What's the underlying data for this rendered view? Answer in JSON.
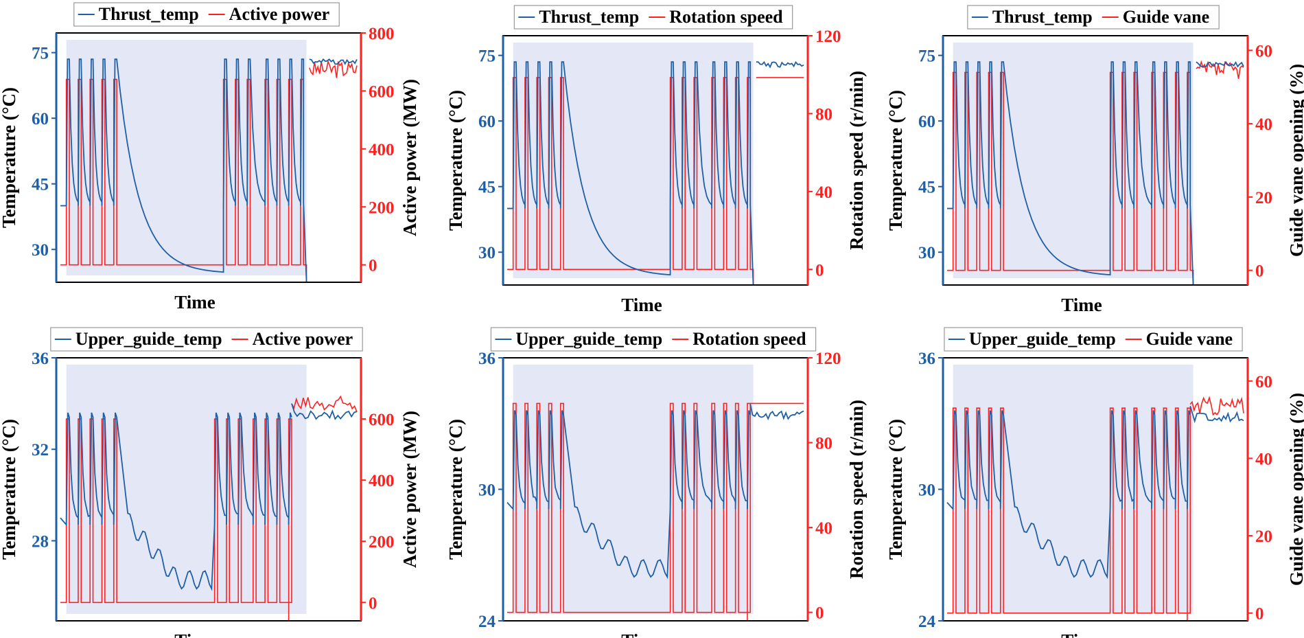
{
  "colors": {
    "temp": "#1f5fa6",
    "op": "#ff2020",
    "shade": "#e4e8f6",
    "frame": "#000000"
  },
  "chart_data": [
    {
      "type": "line",
      "xlabel": "Time",
      "x_ticks_shown": false,
      "grid": false,
      "legend": [
        "Thrust_temp",
        "Active power"
      ],
      "legend_placement": "top-center",
      "left_axis": {
        "label": "Temperature (°C)",
        "ylim": [
          22.5,
          79.5
        ],
        "ticks": [
          30,
          45,
          60,
          75
        ]
      },
      "right_axis": {
        "label": "Active power (MW)",
        "ylim": [
          -60,
          800
        ],
        "ticks": [
          0,
          200,
          400,
          600,
          800
        ]
      },
      "shaded_window": {
        "x_start": 0.02,
        "x_end": 0.83
      },
      "series": [
        {
          "name": "Thrust_temp",
          "axis": "left",
          "baseline": 40,
          "peak": 73.5,
          "high_segments": [
            [
              0.02,
              0.83
            ]
          ],
          "pulses": [
            [
              0.02,
              0.03
            ],
            [
              0.06,
              0.07
            ],
            [
              0.1,
              0.11
            ],
            [
              0.14,
              0.15
            ],
            [
              0.18,
              0.19
            ],
            [
              0.55,
              0.56
            ],
            [
              0.59,
              0.6
            ],
            [
              0.63,
              0.64
            ],
            [
              0.69,
              0.7
            ],
            [
              0.73,
              0.74
            ],
            [
              0.77,
              0.78
            ],
            [
              0.81,
              0.82
            ]
          ],
          "decay_low": 24.5,
          "steady_segment": {
            "x": [
              0.84,
              1.0
            ],
            "value": 73.5
          }
        },
        {
          "name": "Active power",
          "axis": "right",
          "low": 0,
          "high": 640,
          "pulses": [
            [
              0.02,
              0.03
            ],
            [
              0.06,
              0.07
            ],
            [
              0.1,
              0.11
            ],
            [
              0.14,
              0.15
            ],
            [
              0.18,
              0.19
            ],
            [
              0.55,
              0.56
            ],
            [
              0.59,
              0.6
            ],
            [
              0.63,
              0.64
            ],
            [
              0.69,
              0.7
            ],
            [
              0.73,
              0.74
            ],
            [
              0.77,
              0.78
            ],
            [
              0.81,
              0.82
            ]
          ],
          "steady_segment": {
            "x": [
              0.84,
              1.0
            ],
            "value": 680
          }
        }
      ]
    },
    {
      "type": "line",
      "xlabel": "Time",
      "x_ticks_shown": false,
      "grid": false,
      "legend": [
        "Thrust_temp",
        "Rotation speed"
      ],
      "legend_placement": "top-center",
      "left_axis": {
        "label": "Temperature (°C)",
        "ylim": [
          22.5,
          79.5
        ],
        "ticks": [
          30,
          45,
          60,
          75
        ]
      },
      "right_axis": {
        "label": "Rotation speed (r/min)",
        "ylim": [
          -8,
          120
        ],
        "ticks": [
          0,
          40,
          80,
          120
        ]
      },
      "shaded_window": {
        "x_start": 0.02,
        "x_end": 0.83
      },
      "series": [
        {
          "name": "Thrust_temp",
          "axis": "left",
          "baseline": 40,
          "peak": 73.5,
          "pulses": [
            [
              0.02,
              0.03
            ],
            [
              0.06,
              0.07
            ],
            [
              0.1,
              0.11
            ],
            [
              0.14,
              0.15
            ],
            [
              0.18,
              0.19
            ],
            [
              0.55,
              0.56
            ],
            [
              0.59,
              0.6
            ],
            [
              0.63,
              0.64
            ],
            [
              0.69,
              0.7
            ],
            [
              0.73,
              0.74
            ],
            [
              0.77,
              0.78
            ],
            [
              0.81,
              0.82
            ]
          ],
          "decay_low": 24.5,
          "steady_segment": {
            "x": [
              0.84,
              1.0
            ],
            "value": 73.5
          }
        },
        {
          "name": "Rotation speed",
          "axis": "right",
          "low": 0,
          "high": 98.5,
          "pulses": [
            [
              0.02,
              0.03
            ],
            [
              0.06,
              0.07
            ],
            [
              0.1,
              0.11
            ],
            [
              0.14,
              0.15
            ],
            [
              0.18,
              0.19
            ],
            [
              0.55,
              0.56
            ],
            [
              0.59,
              0.6
            ],
            [
              0.63,
              0.64
            ],
            [
              0.69,
              0.7
            ],
            [
              0.73,
              0.74
            ],
            [
              0.77,
              0.78
            ],
            [
              0.81,
              0.82
            ]
          ],
          "steady_segment": {
            "x": [
              0.84,
              1.0
            ],
            "value": 98.5
          }
        }
      ]
    },
    {
      "type": "line",
      "xlabel": "Time",
      "x_ticks_shown": false,
      "grid": false,
      "legend": [
        "Thrust_temp",
        "Guide vane"
      ],
      "legend_placement": "top-center",
      "left_axis": {
        "label": "Temperature (°C)",
        "ylim": [
          22.5,
          79.5
        ],
        "ticks": [
          30,
          45,
          60,
          75
        ]
      },
      "right_axis": {
        "label": "Guide vane opening (%)",
        "ylim": [
          -4,
          64
        ],
        "ticks": [
          0,
          20,
          40,
          60
        ]
      },
      "shaded_window": {
        "x_start": 0.02,
        "x_end": 0.83
      },
      "series": [
        {
          "name": "Thrust_temp",
          "axis": "left",
          "baseline": 40,
          "peak": 73.5,
          "pulses": [
            [
              0.02,
              0.03
            ],
            [
              0.06,
              0.07
            ],
            [
              0.1,
              0.11
            ],
            [
              0.14,
              0.15
            ],
            [
              0.18,
              0.19
            ],
            [
              0.55,
              0.56
            ],
            [
              0.59,
              0.6
            ],
            [
              0.63,
              0.64
            ],
            [
              0.69,
              0.7
            ],
            [
              0.73,
              0.74
            ],
            [
              0.77,
              0.78
            ],
            [
              0.81,
              0.82
            ]
          ],
          "decay_low": 24.5,
          "steady_segment": {
            "x": [
              0.84,
              1.0
            ],
            "value": 73.5
          }
        },
        {
          "name": "Guide vane",
          "axis": "right",
          "low": 0,
          "high": 54,
          "pulses": [
            [
              0.02,
              0.03
            ],
            [
              0.06,
              0.07
            ],
            [
              0.1,
              0.11
            ],
            [
              0.14,
              0.15
            ],
            [
              0.18,
              0.19
            ],
            [
              0.55,
              0.56
            ],
            [
              0.59,
              0.6
            ],
            [
              0.63,
              0.64
            ],
            [
              0.69,
              0.7
            ],
            [
              0.73,
              0.74
            ],
            [
              0.77,
              0.78
            ],
            [
              0.81,
              0.82
            ]
          ],
          "steady_segment": {
            "x": [
              0.84,
              1.0
            ],
            "value": 55
          }
        }
      ]
    },
    {
      "type": "line",
      "xlabel": "Time",
      "x_ticks_shown": false,
      "grid": false,
      "legend": [
        "Upper_guide_temp",
        "Active power"
      ],
      "legend_placement": "top-center",
      "left_axis": {
        "label": "Temperature (°C)",
        "ylim": [
          24.5,
          36
        ],
        "ticks": [
          28,
          32,
          36
        ]
      },
      "right_axis": {
        "label": "Active power (MW)",
        "ylim": [
          -60,
          800
        ],
        "ticks": [
          0,
          200,
          400,
          600
        ]
      },
      "shaded_window": {
        "x_start": 0.02,
        "x_end": 0.83
      },
      "series": [
        {
          "name": "Upper_guide_temp",
          "axis": "left",
          "baseline": 29,
          "peak": 33.6,
          "pulses": [
            [
              0.02,
              0.03
            ],
            [
              0.06,
              0.07
            ],
            [
              0.1,
              0.11
            ],
            [
              0.14,
              0.15
            ],
            [
              0.18,
              0.19
            ],
            [
              0.52,
              0.53
            ],
            [
              0.56,
              0.57
            ],
            [
              0.6,
              0.61
            ],
            [
              0.65,
              0.66
            ],
            [
              0.69,
              0.7
            ],
            [
              0.73,
              0.74
            ],
            [
              0.77,
              0.78
            ]
          ],
          "wavy_segment": {
            "x": [
              0.22,
              0.51
            ],
            "from": 29,
            "to": 26.3
          },
          "steady_segment": {
            "x": [
              0.78,
              1.0
            ],
            "value": 33.7
          }
        },
        {
          "name": "Active power",
          "axis": "right",
          "low": 0,
          "high": 600,
          "pulses": [
            [
              0.02,
              0.03
            ],
            [
              0.06,
              0.07
            ],
            [
              0.1,
              0.11
            ],
            [
              0.14,
              0.15
            ],
            [
              0.18,
              0.19
            ],
            [
              0.52,
              0.53
            ],
            [
              0.56,
              0.57
            ],
            [
              0.6,
              0.61
            ],
            [
              0.65,
              0.66
            ],
            [
              0.69,
              0.7
            ],
            [
              0.73,
              0.74
            ],
            [
              0.77,
              0.78
            ]
          ],
          "steady_segment": {
            "x": [
              0.78,
              1.0
            ],
            "value": 650
          }
        }
      ]
    },
    {
      "type": "line",
      "xlabel": "Time",
      "x_ticks_shown": false,
      "grid": false,
      "legend": [
        "Upper_guide_temp",
        "Rotation speed"
      ],
      "legend_placement": "top-center",
      "left_axis": {
        "label": "Temperature (°C)",
        "ylim": [
          24,
          36
        ],
        "ticks": [
          24,
          30,
          36
        ]
      },
      "right_axis": {
        "label": "Rotation speed (r/min)",
        "ylim": [
          -4,
          120
        ],
        "ticks": [
          0,
          40,
          80,
          120
        ]
      },
      "shaded_window": {
        "x_start": 0.02,
        "x_end": 0.83
      },
      "series": [
        {
          "name": "Upper_guide_temp",
          "axis": "left",
          "baseline": 29.4,
          "peak": 33.6,
          "pulses": [
            [
              0.02,
              0.03
            ],
            [
              0.06,
              0.07
            ],
            [
              0.1,
              0.11
            ],
            [
              0.14,
              0.15
            ],
            [
              0.18,
              0.19
            ],
            [
              0.55,
              0.56
            ],
            [
              0.59,
              0.6
            ],
            [
              0.63,
              0.64
            ],
            [
              0.69,
              0.7
            ],
            [
              0.73,
              0.74
            ],
            [
              0.77,
              0.78
            ],
            [
              0.81,
              0.82
            ]
          ],
          "wavy_segment": {
            "x": [
              0.22,
              0.54
            ],
            "from": 29,
            "to": 26.4
          },
          "steady_segment": {
            "x": [
              0.82,
              1.0
            ],
            "value": 33.6
          }
        },
        {
          "name": "Rotation speed",
          "axis": "right",
          "low": 0,
          "high": 98.5,
          "pulses": [
            [
              0.02,
              0.03
            ],
            [
              0.06,
              0.07
            ],
            [
              0.1,
              0.11
            ],
            [
              0.14,
              0.15
            ],
            [
              0.18,
              0.19
            ],
            [
              0.55,
              0.56
            ],
            [
              0.59,
              0.6
            ],
            [
              0.63,
              0.64
            ],
            [
              0.69,
              0.7
            ],
            [
              0.73,
              0.74
            ],
            [
              0.77,
              0.78
            ],
            [
              0.81,
              0.82
            ]
          ],
          "steady_segment": {
            "x": [
              0.82,
              1.0
            ],
            "value": 98.5
          }
        }
      ]
    },
    {
      "type": "line",
      "xlabel": "Time",
      "x_ticks_shown": false,
      "grid": false,
      "legend": [
        "Upper_guide_temp",
        "Guide vane"
      ],
      "legend_placement": "top-center",
      "left_axis": {
        "label": "Temperature (°C)",
        "ylim": [
          24,
          36
        ],
        "ticks": [
          24,
          30,
          36
        ]
      },
      "right_axis": {
        "label": "Guide vane opening (%)",
        "ylim": [
          -2,
          66
        ],
        "ticks": [
          0,
          20,
          40,
          60
        ]
      },
      "shaded_window": {
        "x_start": 0.02,
        "x_end": 0.83
      },
      "series": [
        {
          "name": "Upper_guide_temp",
          "axis": "left",
          "baseline": 29.4,
          "peak": 33.6,
          "pulses": [
            [
              0.02,
              0.03
            ],
            [
              0.06,
              0.07
            ],
            [
              0.1,
              0.11
            ],
            [
              0.14,
              0.15
            ],
            [
              0.18,
              0.19
            ],
            [
              0.55,
              0.56
            ],
            [
              0.59,
              0.6
            ],
            [
              0.63,
              0.64
            ],
            [
              0.69,
              0.7
            ],
            [
              0.73,
              0.74
            ],
            [
              0.77,
              0.78
            ],
            [
              0.81,
              0.82
            ]
          ],
          "wavy_segment": {
            "x": [
              0.22,
              0.54
            ],
            "from": 29,
            "to": 26.4
          },
          "steady_segment": {
            "x": [
              0.82,
              1.0
            ],
            "value": 33.5
          }
        },
        {
          "name": "Guide vane",
          "axis": "right",
          "low": 0,
          "high": 53,
          "pulses": [
            [
              0.02,
              0.03
            ],
            [
              0.06,
              0.07
            ],
            [
              0.1,
              0.11
            ],
            [
              0.14,
              0.15
            ],
            [
              0.18,
              0.19
            ],
            [
              0.55,
              0.56
            ],
            [
              0.59,
              0.6
            ],
            [
              0.63,
              0.64
            ],
            [
              0.69,
              0.7
            ],
            [
              0.73,
              0.74
            ],
            [
              0.77,
              0.78
            ],
            [
              0.81,
              0.82
            ]
          ],
          "steady_segment": {
            "x": [
              0.82,
              1.0
            ],
            "value": 54
          }
        }
      ]
    }
  ]
}
